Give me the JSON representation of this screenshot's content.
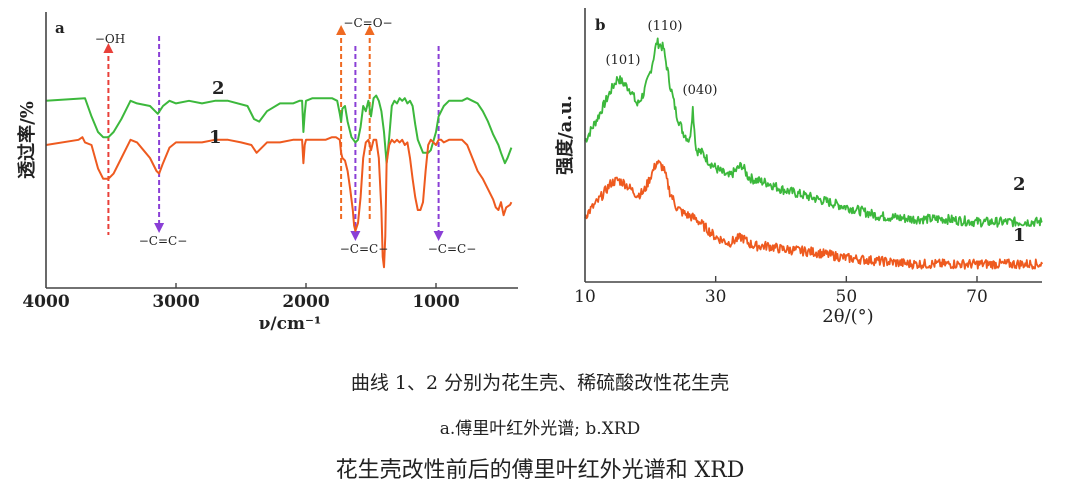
{
  "colors": {
    "curve1": "#ee5a1f",
    "curve2": "#3cb83c",
    "oh_arrow": "#e8403a",
    "co_arrow": "#ef6a22",
    "cc_arrow": "#8a3fd6",
    "axis": "#444444"
  },
  "chart_data": [
    {
      "type": "line",
      "panel_label": "a",
      "title": "",
      "xlabel": "ν/cm⁻¹",
      "ylabel": "透过率/%",
      "xlim": [
        4000,
        370
      ],
      "x_reversed": true,
      "xticks": [
        4000,
        3000,
        2000,
        1000
      ],
      "xtick_labels": [
        "4000",
        "3000",
        "2000",
        "1000"
      ],
      "ylim": [
        0,
        100
      ],
      "yticks": [],
      "grid": false,
      "series": [
        {
          "name": "2",
          "label": "2",
          "x": [
            4000,
            3700,
            3650,
            3600,
            3560,
            3520,
            3480,
            3420,
            3350,
            3300,
            3200,
            3140,
            3100,
            3050,
            3000,
            2900,
            2800,
            2700,
            2600,
            2450,
            2400,
            2360,
            2300,
            2200,
            2100,
            2050,
            2030,
            2020,
            2010,
            2000,
            1950,
            1850,
            1800,
            1760,
            1740,
            1730,
            1720,
            1700,
            1680,
            1650,
            1620,
            1600,
            1580,
            1560,
            1540,
            1520,
            1500,
            1480,
            1460,
            1440,
            1420,
            1400,
            1380,
            1360,
            1340,
            1320,
            1300,
            1280,
            1260,
            1240,
            1220,
            1200,
            1180,
            1160,
            1140,
            1100,
            1060,
            1040,
            1000,
            980,
            960,
            940,
            900,
            860,
            800,
            760,
            720,
            680,
            640,
            600,
            560,
            520,
            500,
            470,
            450,
            420
          ],
          "y": [
            72,
            73,
            66,
            60,
            58,
            58,
            60,
            65,
            72,
            71,
            70,
            67,
            70,
            72,
            71,
            72,
            71,
            72,
            72,
            70,
            65,
            64,
            68,
            71,
            71,
            72,
            72,
            60,
            67,
            72,
            73,
            73,
            73,
            72,
            67,
            64,
            69,
            70,
            64,
            58,
            56,
            57,
            62,
            70,
            68,
            72,
            66,
            73,
            74,
            72,
            68,
            60,
            48,
            58,
            70,
            72,
            71,
            73,
            72,
            73,
            71,
            72,
            70,
            63,
            57,
            52,
            52,
            53,
            60,
            66,
            68,
            70,
            72,
            72,
            72,
            73,
            72,
            71,
            68,
            64,
            59,
            55,
            52,
            48,
            50,
            54
          ],
          "unit_note": "relative transmittance (unscaled)"
        },
        {
          "name": "1",
          "label": "1",
          "x": [
            4000,
            3750,
            3720,
            3700,
            3650,
            3600,
            3560,
            3520,
            3480,
            3420,
            3350,
            3300,
            3250,
            3200,
            3150,
            3130,
            3100,
            3050,
            3000,
            2900,
            2800,
            2700,
            2600,
            2500,
            2420,
            2380,
            2300,
            2200,
            2100,
            2050,
            2030,
            2020,
            2010,
            2000,
            1950,
            1850,
            1800,
            1770,
            1740,
            1730,
            1720,
            1700,
            1680,
            1660,
            1640,
            1630,
            1620,
            1600,
            1580,
            1560,
            1540,
            1520,
            1500,
            1480,
            1460,
            1440,
            1420,
            1410,
            1400,
            1390,
            1380,
            1360,
            1340,
            1320,
            1300,
            1280,
            1260,
            1240,
            1220,
            1200,
            1180,
            1160,
            1140,
            1120,
            1100,
            1080,
            1060,
            1040,
            1000,
            980,
            960,
            940,
            900,
            860,
            800,
            760,
            720,
            680,
            640,
            600,
            560,
            540,
            520,
            500,
            480,
            460,
            430,
            420
          ],
          "y": [
            55,
            57,
            58,
            56,
            55,
            46,
            42,
            42,
            44,
            50,
            57,
            56,
            53,
            50,
            45,
            44,
            48,
            54,
            56,
            56,
            56,
            57,
            57,
            56,
            55,
            52,
            56,
            56,
            57,
            57,
            57,
            48,
            55,
            57,
            57,
            57,
            58,
            58,
            57,
            52,
            50,
            49,
            45,
            38,
            30,
            24,
            22,
            25,
            35,
            50,
            56,
            57,
            53,
            57,
            57,
            50,
            30,
            12,
            8,
            20,
            48,
            55,
            57,
            56,
            57,
            56,
            57,
            55,
            56,
            50,
            42,
            35,
            30,
            30,
            33,
            45,
            55,
            57,
            55,
            57,
            57,
            56,
            57,
            57,
            57,
            55,
            50,
            45,
            42,
            38,
            34,
            31,
            30,
            33,
            28,
            31,
            32,
            33
          ],
          "unit_note": "relative transmittance (unscaled)"
        }
      ],
      "annotations": [
        {
          "text": "−OH",
          "x": 3520,
          "direction": "up",
          "color_key": "oh_arrow"
        },
        {
          "text": "−C=C−",
          "x": 3130,
          "direction": "down",
          "color_key": "cc_arrow"
        },
        {
          "text": "−C=O−",
          "x": [
            1730,
            1510
          ],
          "direction": "up",
          "color_key": "co_arrow"
        },
        {
          "text": "−C=C−",
          "x": 1620,
          "direction": "down",
          "color_key": "cc_arrow"
        },
        {
          "text": "−C=C−",
          "x": 980,
          "direction": "down",
          "color_key": "cc_arrow"
        }
      ]
    },
    {
      "type": "line",
      "panel_label": "b",
      "title": "",
      "xlabel": "2θ/(°)",
      "ylabel": "强度/a.u.",
      "xlim": [
        10,
        80
      ],
      "xticks": [
        10,
        30,
        50,
        70
      ],
      "xtick_labels": [
        "10",
        "30",
        "50",
        "70"
      ],
      "ylim": [
        0,
        100
      ],
      "yticks": [],
      "grid": false,
      "series": [
        {
          "name": "2",
          "label": "2",
          "x": [
            10,
            12,
            14,
            15,
            16,
            17,
            18,
            19,
            20,
            21,
            22,
            23,
            24,
            25,
            26,
            26.5,
            27,
            28,
            29,
            30,
            32,
            34,
            35,
            36,
            38,
            40,
            45,
            50,
            55,
            60,
            65,
            70,
            75,
            80
          ],
          "y": [
            47,
            55,
            64,
            68,
            66,
            64,
            59,
            63,
            70,
            80,
            78,
            66,
            56,
            50,
            47,
            58,
            44,
            43,
            40,
            38,
            35,
            39,
            35,
            34,
            33,
            31,
            28,
            25,
            22,
            21,
            21,
            20,
            20,
            20
          ]
        },
        {
          "name": "1",
          "label": "1",
          "x": [
            10,
            12,
            14,
            15,
            16,
            17,
            18,
            19,
            20,
            21,
            22,
            23,
            24,
            25,
            26,
            27,
            28,
            29,
            30,
            32,
            34,
            35,
            36,
            38,
            40,
            45,
            50,
            55,
            60,
            65,
            70,
            75,
            80
          ],
          "y": [
            22,
            27,
            33,
            34,
            33,
            31,
            29,
            30,
            35,
            40,
            38,
            30,
            25,
            23,
            22,
            21,
            19,
            17,
            15,
            13,
            15,
            13,
            12,
            12,
            11,
            10,
            8,
            7,
            6,
            6,
            6,
            6,
            6
          ]
        }
      ],
      "annotations": [
        {
          "text": "(101)",
          "x": 15.5
        },
        {
          "text": "(110)",
          "x": 21.5
        },
        {
          "text": "(040)",
          "x": 26.5
        }
      ]
    }
  ],
  "caption": {
    "line1": "曲线 1、2 分别为花生壳、稀硫酸改性花生壳",
    "line2": "a.傅里叶红外光谱; b.XRD",
    "line3": "花生壳改性前后的傅里叶红外光谱和 XRD"
  }
}
